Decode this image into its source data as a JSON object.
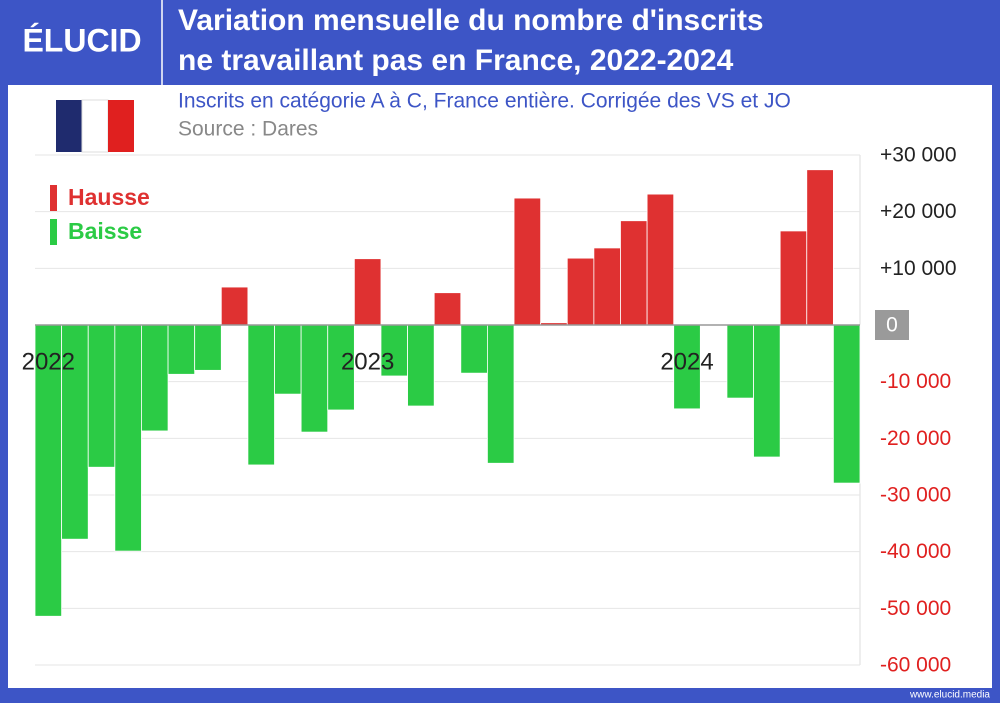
{
  "brand": "ÉLUCID",
  "footer": "www.elucid.media",
  "chart_data": {
    "type": "bar",
    "title": [
      "Variation mensuelle du nombre d'inscrits",
      "ne travaillant pas en France, 2022-2024"
    ],
    "subtitle": "Inscrits en catégorie A à C, France entière. Corrigée des VS et JO",
    "source": "Source : Dares",
    "categories": [
      "2022",
      null,
      null,
      null,
      null,
      null,
      null,
      null,
      null,
      null,
      null,
      null,
      "2023",
      null,
      null,
      null,
      null,
      null,
      null,
      null,
      null,
      null,
      null,
      null,
      "2024",
      null,
      null,
      null,
      null,
      null,
      null
    ],
    "values": [
      -51400,
      -37800,
      -25100,
      -39900,
      -18700,
      -8700,
      -8000,
      6700,
      -24700,
      -12200,
      -18900,
      -15000,
      11700,
      -9000,
      -14300,
      5700,
      -8500,
      -24400,
      22400,
      400,
      11800,
      13600,
      18400,
      23100,
      -14800,
      0,
      -12900,
      -23300,
      16600,
      27400,
      -27900
    ],
    "legend": [
      {
        "label": "Hausse",
        "color": "#df3131"
      },
      {
        "label": "Baisse",
        "color": "#2bcb45"
      }
    ],
    "ylim": [
      -60000,
      30000
    ],
    "yticks": [
      {
        "value": 30000,
        "label": "+30 000"
      },
      {
        "value": 20000,
        "label": "+20 000"
      },
      {
        "value": 10000,
        "label": "+10 000"
      },
      0,
      {
        "value": -10000,
        "label": "-10 000"
      },
      {
        "value": -20000,
        "label": "-20 000"
      },
      {
        "value": -30000,
        "label": "-30 000"
      },
      {
        "value": -40000,
        "label": "-40 000"
      },
      {
        "value": -50000,
        "label": "-50 000"
      },
      {
        "value": -60000,
        "label": "-60 000"
      }
    ],
    "grid": true
  }
}
